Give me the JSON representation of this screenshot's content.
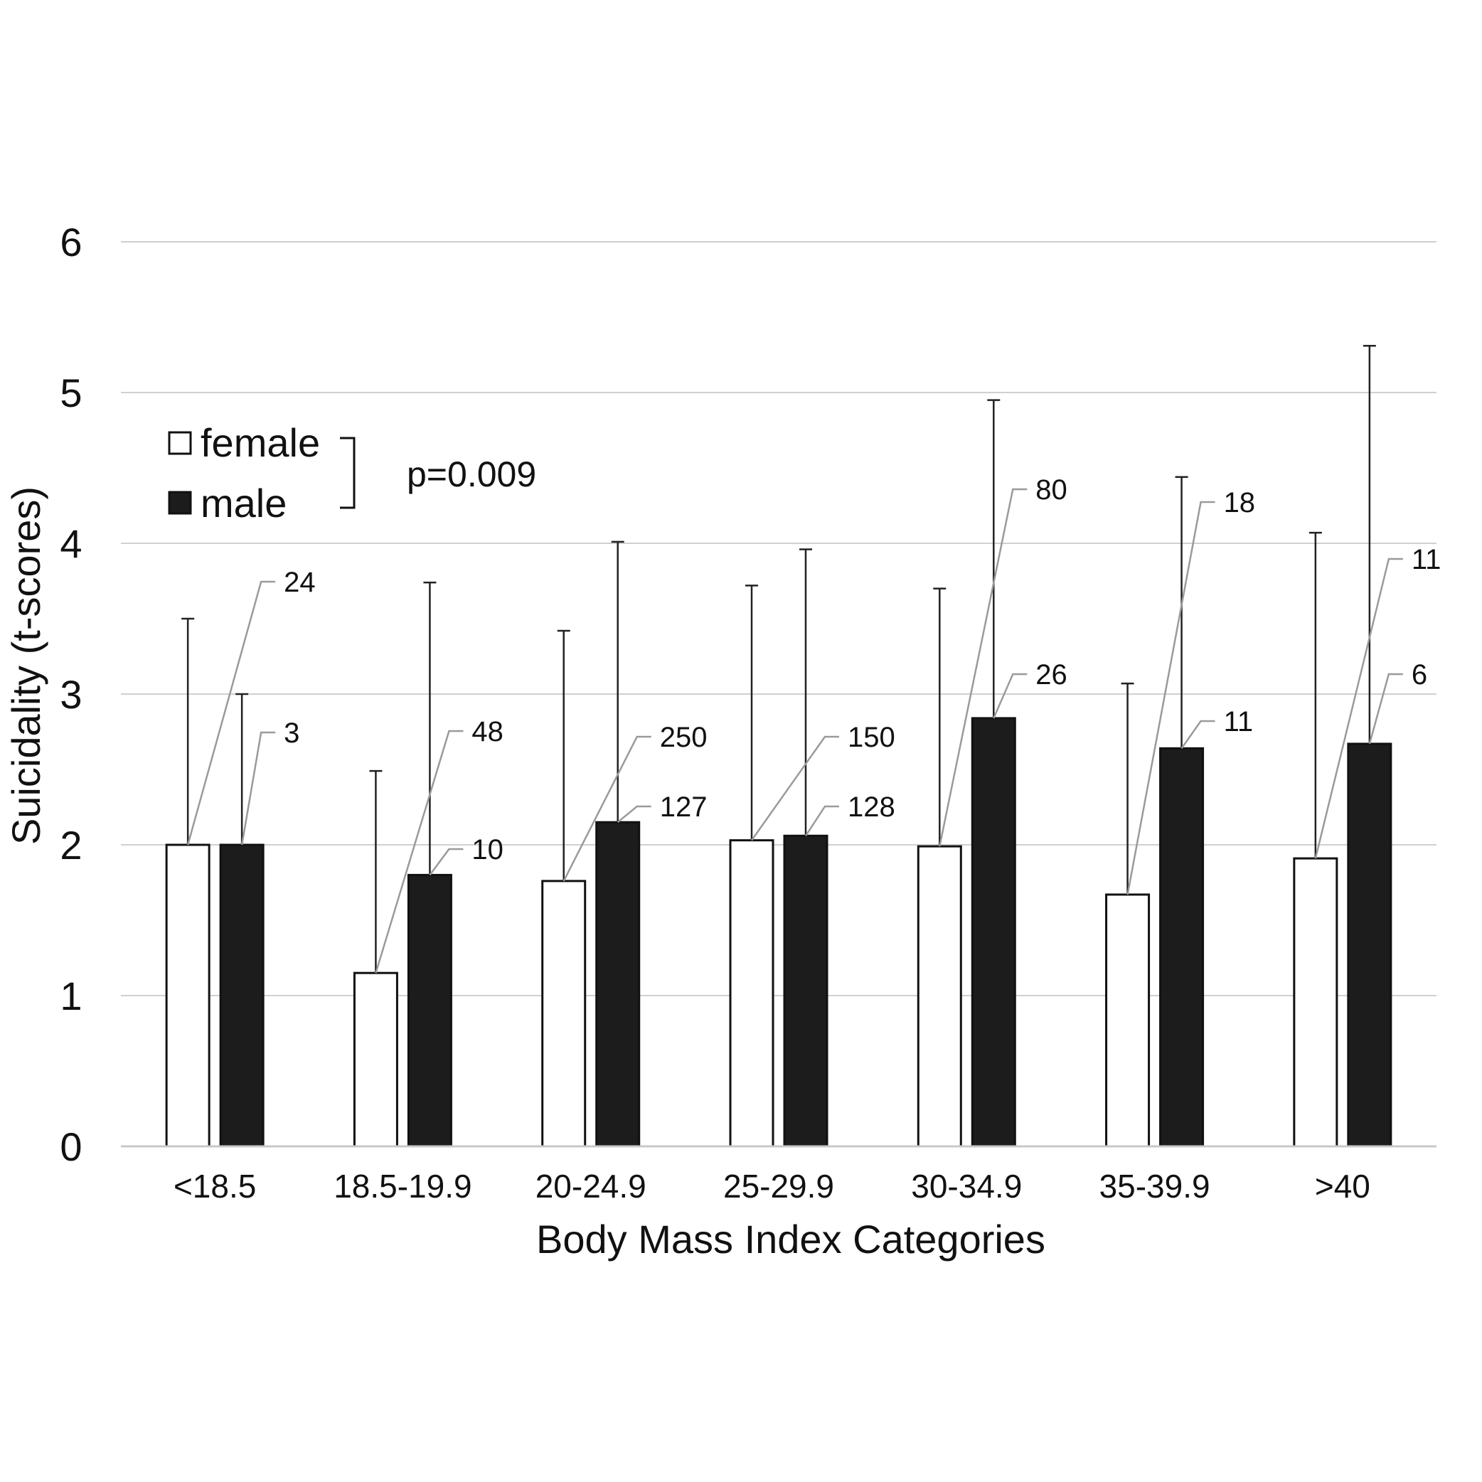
{
  "chart_data": {
    "type": "bar",
    "xlabel": "Body Mass Index Categories",
    "ylabel": "Suicidality (t-scores)",
    "ylim": [
      0,
      6
    ],
    "yticks": [
      0,
      1,
      2,
      3,
      4,
      5,
      6
    ],
    "grid": true,
    "legend_position": "top-left",
    "annotation": "p=0.009",
    "categories": [
      "<18.5",
      "18.5-19.9",
      "20-24.9",
      "25-29.9",
      "30-34.9",
      "35-39.9",
      ">40"
    ],
    "series": [
      {
        "name": "female",
        "fill": "#ffffff",
        "values": [
          2.0,
          1.15,
          1.76,
          2.03,
          1.99,
          1.67,
          1.91
        ],
        "error_upper": [
          3.5,
          2.49,
          3.42,
          3.72,
          3.7,
          3.07,
          4.07
        ],
        "n": [
          "24",
          "48",
          "250",
          "150",
          "80",
          "18",
          "11"
        ]
      },
      {
        "name": "male",
        "fill": "#1c1c1c",
        "values": [
          2.0,
          1.8,
          2.15,
          2.06,
          2.84,
          2.64,
          2.67
        ],
        "error_upper": [
          3.0,
          3.74,
          4.01,
          3.96,
          4.95,
          4.44,
          5.31
        ],
        "n": [
          "3",
          "10",
          "127",
          "128",
          "26",
          "11",
          "6"
        ]
      }
    ]
  }
}
